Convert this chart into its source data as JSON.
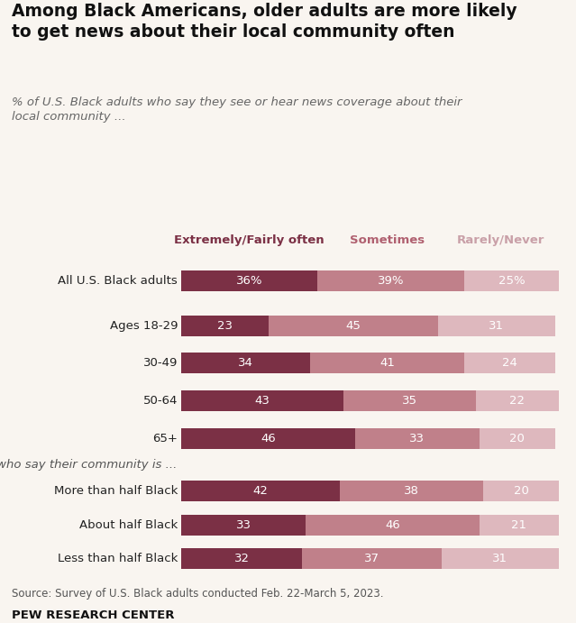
{
  "title": "Among Black Americans, older adults are more likely\nto get news about their local community often",
  "subtitle": "% of U.S. Black adults who say they see or hear news coverage about their\nlocal community ...",
  "source": "Source: Survey of U.S. Black adults conducted Feb. 22-March 5, 2023.",
  "footer": "PEW RESEARCH CENTER",
  "categories": [
    "All U.S. Black adults",
    "Ages 18-29",
    "30-49",
    "50-64",
    "65+",
    "More than half Black",
    "About half Black",
    "Less than half Black"
  ],
  "section_label": "Among those who say their community is ...",
  "section_after_index": 4,
  "values": [
    [
      36,
      39,
      25
    ],
    [
      23,
      45,
      31
    ],
    [
      34,
      41,
      24
    ],
    [
      43,
      35,
      22
    ],
    [
      46,
      33,
      20
    ],
    [
      42,
      38,
      20
    ],
    [
      33,
      46,
      21
    ],
    [
      32,
      37,
      31
    ]
  ],
  "bar_labels": [
    [
      "36%",
      "39%",
      "25%"
    ],
    [
      "23",
      "45",
      "31"
    ],
    [
      "34",
      "41",
      "24"
    ],
    [
      "43",
      "35",
      "22"
    ],
    [
      "46",
      "33",
      "20"
    ],
    [
      "42",
      "38",
      "20"
    ],
    [
      "33",
      "46",
      "21"
    ],
    [
      "32",
      "37",
      "31"
    ]
  ],
  "colors": [
    "#7b3045",
    "#c0808a",
    "#deb8be"
  ],
  "legend_labels": [
    "Extremely/Fairly often",
    "Sometimes",
    "Rarely/Never"
  ],
  "legend_text_colors": [
    "#7b3045",
    "#b06070",
    "#c9a0a8"
  ],
  "background_color": "#f9f5f0",
  "bar_height": 0.55,
  "figsize": [
    6.39,
    6.91
  ],
  "dpi": 100
}
